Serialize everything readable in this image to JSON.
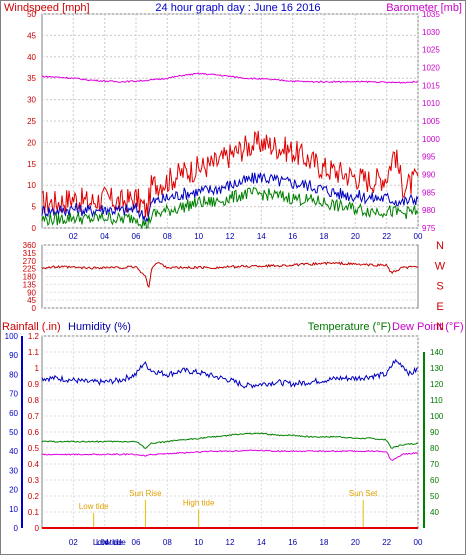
{
  "chart_data": [
    {
      "type": "line",
      "title": "24 hour graph day : June 16 2016",
      "left_axis_label": "Windspeed [mph]",
      "right_axis_label": "Barometer [mb]",
      "x_tick_labels": [
        "02",
        "04",
        "06",
        "08",
        "10",
        "12",
        "14",
        "16",
        "18",
        "20",
        "22",
        "00"
      ],
      "x_range": [
        0,
        24
      ],
      "left_ticks": [
        0,
        5,
        10,
        15,
        20,
        25,
        30,
        35,
        40,
        45,
        50
      ],
      "left_range": [
        0,
        50
      ],
      "right_ticks": [
        975,
        980,
        985,
        990,
        995,
        1000,
        1005,
        1010,
        1015,
        1020,
        1025,
        1030,
        1035
      ],
      "right_range": [
        975,
        1035
      ],
      "grid": true,
      "series": [
        {
          "name": "",
          "color": "#e00000",
          "x": [
            0,
            1,
            2,
            3,
            4,
            5,
            6,
            6.7,
            7,
            8,
            9,
            10,
            11,
            12,
            13,
            14,
            15,
            16,
            17,
            18,
            19,
            20,
            21,
            22,
            22.5,
            23,
            23.5,
            24
          ],
          "values": [
            6,
            6,
            7,
            6,
            7,
            6,
            7,
            4,
            10,
            11,
            13,
            14,
            15,
            17,
            19,
            20,
            19,
            18,
            16,
            14,
            13,
            12,
            11,
            12,
            18,
            10,
            10,
            12
          ]
        },
        {
          "name": "",
          "color": "#0000c0",
          "x": [
            0,
            1,
            2,
            3,
            4,
            5,
            6,
            6.7,
            7,
            8,
            9,
            10,
            11,
            12,
            13,
            14,
            15,
            16,
            17,
            18,
            19,
            20,
            21,
            22,
            23,
            24
          ],
          "values": [
            4,
            4,
            4.5,
            4,
            4.5,
            4,
            4.5,
            2,
            6,
            7,
            8,
            8.5,
            9,
            10,
            11,
            12,
            11,
            10.5,
            10,
            9,
            8,
            7.5,
            7,
            7,
            6,
            7
          ]
        },
        {
          "name": "",
          "color": "#008000",
          "x": [
            0,
            1,
            2,
            3,
            4,
            5,
            6,
            6.7,
            7,
            8,
            9,
            10,
            11,
            12,
            13,
            14,
            15,
            16,
            17,
            18,
            19,
            20,
            21,
            22,
            23,
            24
          ],
          "values": [
            2,
            2,
            2.5,
            2,
            2.5,
            2,
            2.5,
            0.5,
            3,
            4,
            5,
            6,
            6,
            7,
            8,
            8,
            7.5,
            7,
            6.5,
            6,
            5,
            4.5,
            4,
            4,
            3.5,
            4
          ]
        },
        {
          "name": "",
          "color": "#e000e0",
          "axis": "right",
          "x": [
            0,
            1,
            2,
            3,
            4,
            5,
            6,
            7,
            8,
            9,
            10,
            11,
            12,
            13,
            14,
            15,
            16,
            17,
            18,
            19,
            20,
            21,
            22,
            23,
            24
          ],
          "values": [
            1017.5,
            1017.3,
            1017,
            1016.5,
            1016.2,
            1016,
            1016.2,
            1016.5,
            1017,
            1017.8,
            1018.3,
            1018,
            1017.5,
            1017,
            1016.8,
            1016.5,
            1016.2,
            1016,
            1016,
            1016,
            1016,
            1016,
            1015.8,
            1015.8,
            1016
          ]
        }
      ]
    },
    {
      "type": "line",
      "right_axis_labels": [
        "N",
        "W",
        "S",
        "E",
        "N"
      ],
      "left_ticks": [
        0,
        45,
        90,
        135,
        180,
        225,
        270,
        315,
        360
      ],
      "left_range": [
        0,
        360
      ],
      "x_range": [
        0,
        24
      ],
      "series": [
        {
          "name": "",
          "color": "#c00000",
          "x": [
            0,
            1,
            2,
            3,
            4,
            5,
            6,
            6.6,
            6.8,
            7,
            7.4,
            8,
            9,
            10,
            11,
            12,
            13,
            14,
            15,
            16,
            17,
            18,
            19,
            20,
            21,
            22,
            22.3,
            22.6,
            23,
            24
          ],
          "values": [
            230,
            235,
            232,
            228,
            232,
            230,
            235,
            180,
            110,
            230,
            260,
            232,
            230,
            232,
            230,
            235,
            238,
            240,
            242,
            245,
            250,
            255,
            255,
            250,
            245,
            245,
            200,
            210,
            230,
            235
          ]
        }
      ]
    },
    {
      "type": "line",
      "left_axis_label": "Rainfall (.in)",
      "humidity_axis_label": "Humidity (%)",
      "temperature_axis_label": "Temperature (°F)",
      "dewpoint_axis_label": "Dew Point (°F)",
      "x_tick_labels": [
        "02",
        "04",
        "06",
        "08",
        "10",
        "12",
        "14",
        "16",
        "18",
        "20",
        "22",
        "00"
      ],
      "x_range": [
        0,
        24
      ],
      "rain_ticks": [
        "0",
        "0.1",
        "0.2",
        "0.3",
        "0.4",
        "0.5",
        "0.6",
        "0.7",
        "0.8",
        "0.9",
        "1",
        "1.1",
        "1.2"
      ],
      "rain_range": [
        0,
        1.2
      ],
      "humidity_ticks": [
        0,
        10,
        20,
        30,
        40,
        50,
        60,
        70,
        80,
        90,
        100
      ],
      "humidity_range": [
        0,
        100
      ],
      "temperature_ticks": [
        40,
        50,
        60,
        70,
        80,
        90,
        100,
        110,
        120,
        130,
        140
      ],
      "temperature_range": [
        30,
        150
      ],
      "annotations": [
        {
          "text": "Low tide",
          "x": 3.3,
          "y_rain": 0.12
        },
        {
          "text": "Sun Rise",
          "x": 6.6,
          "y_rain": 0.2
        },
        {
          "text": "High tide",
          "x": 10,
          "y_rain": 0.14
        },
        {
          "text": "Sun Set",
          "x": 20.5,
          "y_rain": 0.2
        }
      ],
      "x_axis_annotations": [
        {
          "text": "Low tide",
          "x": 4.2
        },
        {
          "text": "Low tide",
          "x": 4.4
        }
      ],
      "series": [
        {
          "name": "",
          "color": "#0000c0",
          "axis": "humidity",
          "x": [
            0,
            1,
            2,
            3,
            4,
            5,
            6,
            6.5,
            7,
            8,
            9,
            10,
            11,
            12,
            13,
            14,
            15,
            16,
            17,
            18,
            19,
            20,
            21,
            22,
            22.5,
            23,
            23.5,
            24
          ],
          "values": [
            78,
            78,
            77,
            76,
            76,
            77,
            80,
            86,
            82,
            80,
            82,
            81,
            79,
            77,
            74,
            75,
            76,
            75,
            76,
            77,
            78,
            78,
            79,
            80,
            87,
            85,
            80,
            83
          ]
        },
        {
          "name": "",
          "color": "#008000",
          "axis": "temperature",
          "x": [
            0,
            1,
            2,
            3,
            4,
            5,
            6,
            6.6,
            7,
            8,
            9,
            10,
            11,
            12,
            13,
            14,
            15,
            16,
            17,
            18,
            19,
            20,
            21,
            22,
            22.3,
            23,
            24
          ],
          "values": [
            84,
            84,
            84,
            84,
            84,
            84,
            84,
            80,
            83,
            84,
            85,
            86,
            87,
            88,
            89,
            89,
            88,
            88,
            87,
            87,
            87,
            86,
            86,
            85,
            80,
            82,
            83
          ]
        },
        {
          "name": "",
          "color": "#e000e0",
          "axis": "temperature",
          "x": [
            0,
            1,
            2,
            3,
            4,
            5,
            6,
            6.6,
            7,
            8,
            9,
            10,
            11,
            12,
            13,
            14,
            15,
            16,
            17,
            18,
            19,
            20,
            21,
            22,
            22.3,
            23,
            24
          ],
          "values": [
            76,
            76,
            76,
            76,
            76,
            76,
            76,
            75,
            76,
            76.5,
            77,
            77.5,
            78,
            78,
            78.5,
            78.5,
            78,
            78,
            78,
            78,
            78,
            78,
            78,
            77.5,
            72,
            76,
            77
          ]
        },
        {
          "name": "",
          "color": "#e00000",
          "axis": "rain",
          "x": [
            0,
            24
          ],
          "values": [
            0,
            0
          ]
        }
      ]
    }
  ]
}
